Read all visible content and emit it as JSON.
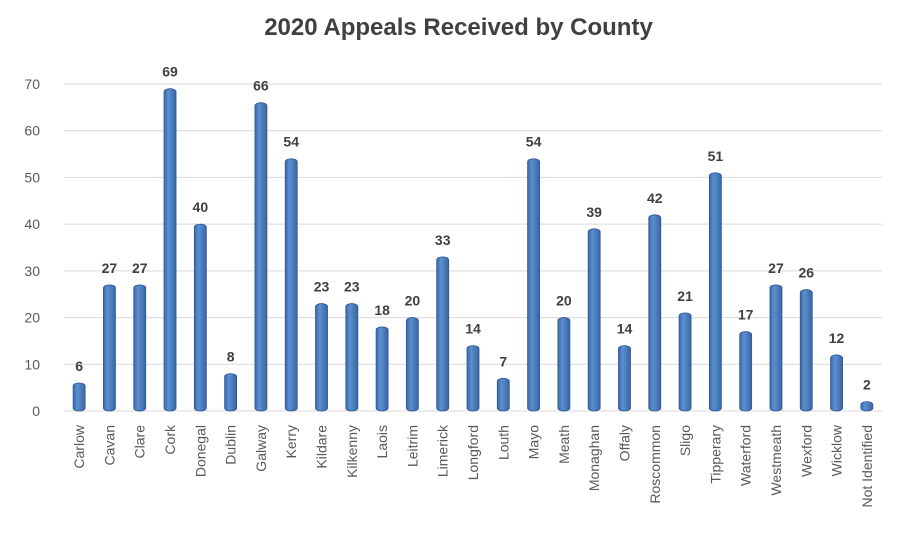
{
  "chart_data": {
    "type": "bar",
    "title": "2020 Appeals Received by County",
    "xlabel": "",
    "ylabel": "",
    "ylim": [
      0,
      70
    ],
    "yticks": [
      0,
      10,
      20,
      30,
      40,
      50,
      60,
      70
    ],
    "grid": true,
    "legend": "none",
    "bar_color": "#4F81BD",
    "bar_edge_color": "#2F5597",
    "categories": [
      "Carlow",
      "Cavan",
      "Clare",
      "Cork",
      "Donegal",
      "Dublin",
      "Galway",
      "Kerry",
      "Kildare",
      "Kilkenny",
      "Laois",
      "Leitrim",
      "Limerick",
      "Longford",
      "Louth",
      "Mayo",
      "Meath",
      "Monaghan",
      "Offaly",
      "Roscommon",
      "Sligo",
      "Tipperary",
      "Waterford",
      "Westmeath",
      "Wexford",
      "Wicklow",
      "Not Identified"
    ],
    "values": [
      6,
      27,
      27,
      69,
      40,
      8,
      66,
      54,
      23,
      23,
      18,
      20,
      33,
      14,
      7,
      54,
      20,
      39,
      14,
      42,
      21,
      51,
      17,
      27,
      26,
      12,
      2
    ]
  }
}
